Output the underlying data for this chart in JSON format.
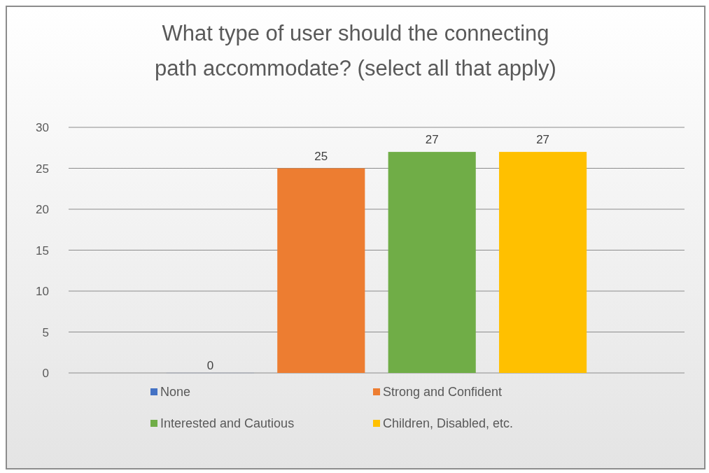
{
  "chart_data": {
    "type": "bar",
    "title": "What type of user should the connecting path accommodate?   (select all that apply)",
    "categories": [
      null
    ],
    "series": [
      {
        "name": "None",
        "color": "#4472c4",
        "values": [
          0
        ]
      },
      {
        "name": "Strong and Confident",
        "color": "#ed7d31",
        "values": [
          25
        ]
      },
      {
        "name": "Interested and Cautious",
        "color": "#70ad47",
        "values": [
          27
        ]
      },
      {
        "name": "Children, Disabled, etc.",
        "color": "#ffc000",
        "values": [
          27
        ]
      }
    ],
    "ylim": [
      0,
      30
    ],
    "yticks": [
      0,
      5,
      10,
      15,
      20,
      25,
      30
    ],
    "grid": "y",
    "legend": "bottom",
    "data_labels": true
  }
}
